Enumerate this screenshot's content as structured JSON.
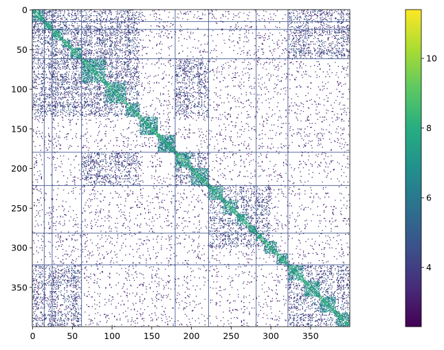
{
  "chart_data": {
    "type": "heatmap",
    "title": "",
    "xlabel": "",
    "ylabel": "",
    "x_range": [
      0,
      400
    ],
    "y_range": [
      0,
      400
    ],
    "y_inverted": true,
    "x_ticks": [
      0,
      50,
      100,
      150,
      200,
      250,
      300,
      350
    ],
    "y_ticks": [
      0,
      50,
      100,
      150,
      200,
      250,
      300,
      350
    ],
    "colorbar": {
      "colormap": "viridis",
      "range": [
        2.3,
        11.4
      ],
      "ticks": [
        4,
        6,
        8,
        10
      ]
    },
    "blocks": [
      [
        0,
        15
      ],
      [
        15,
        25
      ],
      [
        25,
        38
      ],
      [
        38,
        48
      ],
      [
        48,
        62
      ],
      [
        62,
        92
      ],
      [
        92,
        118
      ],
      [
        118,
        135
      ],
      [
        135,
        158
      ],
      [
        158,
        180
      ],
      [
        180,
        200
      ],
      [
        200,
        222
      ],
      [
        222,
        240
      ],
      [
        240,
        258
      ],
      [
        258,
        272
      ],
      [
        272,
        282
      ],
      [
        282,
        292
      ],
      [
        292,
        308
      ],
      [
        308,
        322
      ],
      [
        322,
        342
      ],
      [
        342,
        362
      ],
      [
        362,
        382
      ],
      [
        382,
        400
      ]
    ],
    "dense_regions": [
      [
        62,
        135,
        62,
        135
      ],
      [
        180,
        222,
        180,
        222
      ],
      [
        322,
        400,
        322,
        400
      ],
      [
        0,
        62,
        0,
        62
      ],
      [
        62,
        135,
        0,
        62
      ],
      [
        180,
        222,
        62,
        135
      ],
      [
        322,
        400,
        0,
        62
      ],
      [
        222,
        300,
        222,
        300
      ]
    ],
    "lines": [
      15,
      25,
      62,
      180,
      222,
      282,
      322
    ],
    "background": "#ffffff",
    "grid": false
  }
}
